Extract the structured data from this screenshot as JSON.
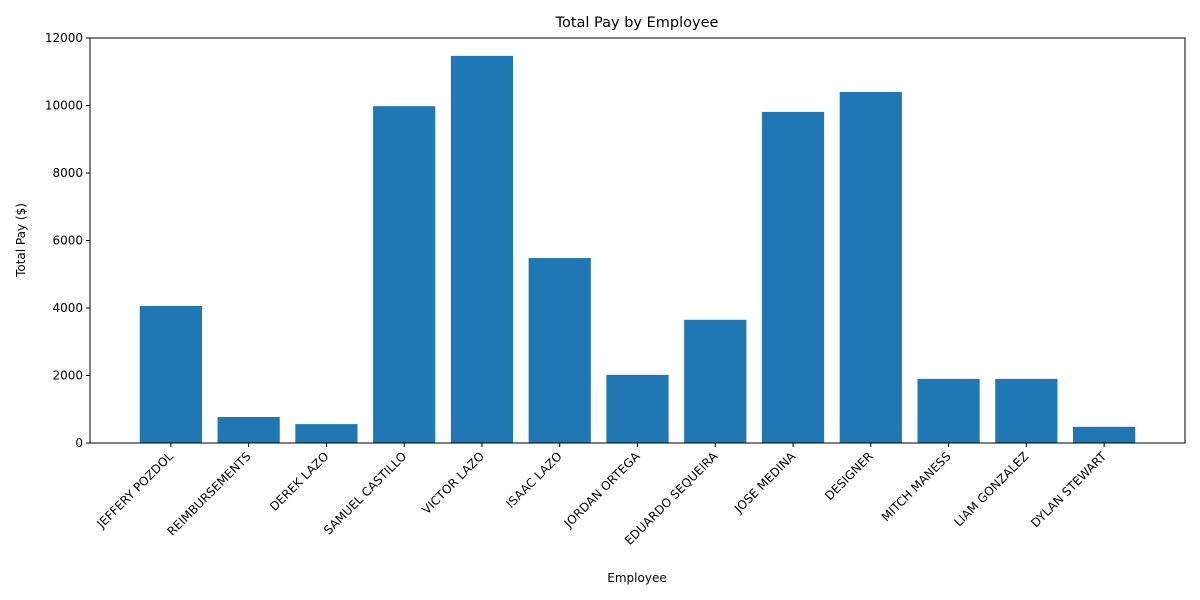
{
  "chart_data": {
    "type": "bar",
    "title": "Total Pay by Employee",
    "x_label": "Employee",
    "y_label": "Total Pay ($)",
    "categories": [
      "JEFFERY POZDOL",
      "REIMBURSEMENTS",
      "DEREK LAZO",
      "SAMUEL CASTILLO",
      "VICTOR LAZO",
      "ISAAC LAZO",
      "JORDAN ORTEGA",
      "EDUARDO SEQUEIRA",
      "JOSE MEDINA",
      "DESIGNER",
      "MITCH MANESS",
      "LIAM GONZALEZ",
      "DYLAN STEWART"
    ],
    "values": [
      4060,
      770,
      560,
      9980,
      11470,
      5480,
      2020,
      3650,
      9810,
      10400,
      1900,
      1900,
      480
    ],
    "color": "#1f77b4",
    "ylim": [
      0,
      12000
    ],
    "yticks": [
      0,
      2000,
      4000,
      6000,
      8000,
      10000,
      12000
    ],
    "grid": false
  }
}
